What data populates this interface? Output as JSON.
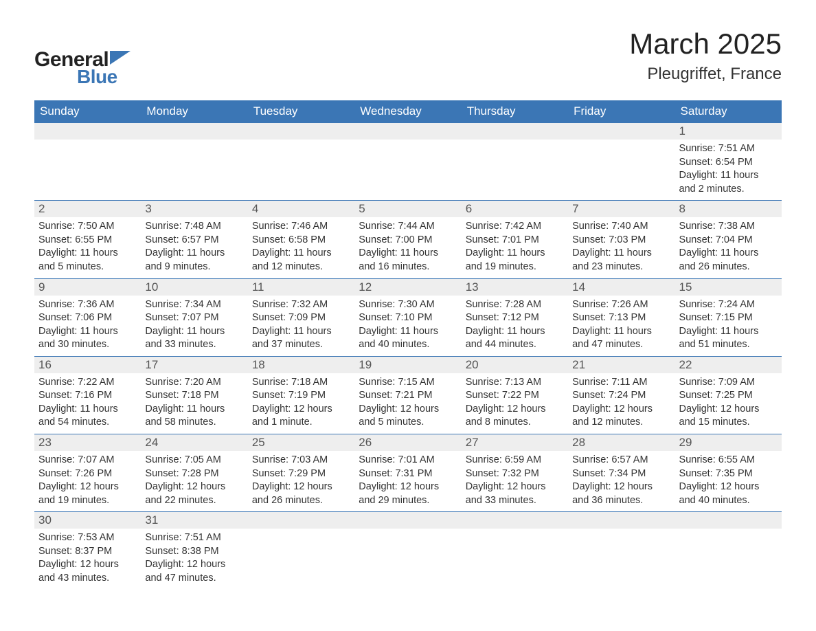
{
  "logo": {
    "text1": "General",
    "text2": "Blue",
    "icon_color": "#3b76b5"
  },
  "title": {
    "month": "March 2025",
    "location": "Pleugriffet, France"
  },
  "calendar": {
    "header_bg": "#3b76b5",
    "header_fg": "#ffffff",
    "daynum_bg": "#eeeeee",
    "border_color": "#3b76b5",
    "text_color": "#333333",
    "columns": [
      "Sunday",
      "Monday",
      "Tuesday",
      "Wednesday",
      "Thursday",
      "Friday",
      "Saturday"
    ],
    "weeks": [
      [
        {
          "day": "",
          "sunrise": "",
          "sunset": "",
          "daylight1": "",
          "daylight2": ""
        },
        {
          "day": "",
          "sunrise": "",
          "sunset": "",
          "daylight1": "",
          "daylight2": ""
        },
        {
          "day": "",
          "sunrise": "",
          "sunset": "",
          "daylight1": "",
          "daylight2": ""
        },
        {
          "day": "",
          "sunrise": "",
          "sunset": "",
          "daylight1": "",
          "daylight2": ""
        },
        {
          "day": "",
          "sunrise": "",
          "sunset": "",
          "daylight1": "",
          "daylight2": ""
        },
        {
          "day": "",
          "sunrise": "",
          "sunset": "",
          "daylight1": "",
          "daylight2": ""
        },
        {
          "day": "1",
          "sunrise": "Sunrise: 7:51 AM",
          "sunset": "Sunset: 6:54 PM",
          "daylight1": "Daylight: 11 hours",
          "daylight2": "and 2 minutes."
        }
      ],
      [
        {
          "day": "2",
          "sunrise": "Sunrise: 7:50 AM",
          "sunset": "Sunset: 6:55 PM",
          "daylight1": "Daylight: 11 hours",
          "daylight2": "and 5 minutes."
        },
        {
          "day": "3",
          "sunrise": "Sunrise: 7:48 AM",
          "sunset": "Sunset: 6:57 PM",
          "daylight1": "Daylight: 11 hours",
          "daylight2": "and 9 minutes."
        },
        {
          "day": "4",
          "sunrise": "Sunrise: 7:46 AM",
          "sunset": "Sunset: 6:58 PM",
          "daylight1": "Daylight: 11 hours",
          "daylight2": "and 12 minutes."
        },
        {
          "day": "5",
          "sunrise": "Sunrise: 7:44 AM",
          "sunset": "Sunset: 7:00 PM",
          "daylight1": "Daylight: 11 hours",
          "daylight2": "and 16 minutes."
        },
        {
          "day": "6",
          "sunrise": "Sunrise: 7:42 AM",
          "sunset": "Sunset: 7:01 PM",
          "daylight1": "Daylight: 11 hours",
          "daylight2": "and 19 minutes."
        },
        {
          "day": "7",
          "sunrise": "Sunrise: 7:40 AM",
          "sunset": "Sunset: 7:03 PM",
          "daylight1": "Daylight: 11 hours",
          "daylight2": "and 23 minutes."
        },
        {
          "day": "8",
          "sunrise": "Sunrise: 7:38 AM",
          "sunset": "Sunset: 7:04 PM",
          "daylight1": "Daylight: 11 hours",
          "daylight2": "and 26 minutes."
        }
      ],
      [
        {
          "day": "9",
          "sunrise": "Sunrise: 7:36 AM",
          "sunset": "Sunset: 7:06 PM",
          "daylight1": "Daylight: 11 hours",
          "daylight2": "and 30 minutes."
        },
        {
          "day": "10",
          "sunrise": "Sunrise: 7:34 AM",
          "sunset": "Sunset: 7:07 PM",
          "daylight1": "Daylight: 11 hours",
          "daylight2": "and 33 minutes."
        },
        {
          "day": "11",
          "sunrise": "Sunrise: 7:32 AM",
          "sunset": "Sunset: 7:09 PM",
          "daylight1": "Daylight: 11 hours",
          "daylight2": "and 37 minutes."
        },
        {
          "day": "12",
          "sunrise": "Sunrise: 7:30 AM",
          "sunset": "Sunset: 7:10 PM",
          "daylight1": "Daylight: 11 hours",
          "daylight2": "and 40 minutes."
        },
        {
          "day": "13",
          "sunrise": "Sunrise: 7:28 AM",
          "sunset": "Sunset: 7:12 PM",
          "daylight1": "Daylight: 11 hours",
          "daylight2": "and 44 minutes."
        },
        {
          "day": "14",
          "sunrise": "Sunrise: 7:26 AM",
          "sunset": "Sunset: 7:13 PM",
          "daylight1": "Daylight: 11 hours",
          "daylight2": "and 47 minutes."
        },
        {
          "day": "15",
          "sunrise": "Sunrise: 7:24 AM",
          "sunset": "Sunset: 7:15 PM",
          "daylight1": "Daylight: 11 hours",
          "daylight2": "and 51 minutes."
        }
      ],
      [
        {
          "day": "16",
          "sunrise": "Sunrise: 7:22 AM",
          "sunset": "Sunset: 7:16 PM",
          "daylight1": "Daylight: 11 hours",
          "daylight2": "and 54 minutes."
        },
        {
          "day": "17",
          "sunrise": "Sunrise: 7:20 AM",
          "sunset": "Sunset: 7:18 PM",
          "daylight1": "Daylight: 11 hours",
          "daylight2": "and 58 minutes."
        },
        {
          "day": "18",
          "sunrise": "Sunrise: 7:18 AM",
          "sunset": "Sunset: 7:19 PM",
          "daylight1": "Daylight: 12 hours",
          "daylight2": "and 1 minute."
        },
        {
          "day": "19",
          "sunrise": "Sunrise: 7:15 AM",
          "sunset": "Sunset: 7:21 PM",
          "daylight1": "Daylight: 12 hours",
          "daylight2": "and 5 minutes."
        },
        {
          "day": "20",
          "sunrise": "Sunrise: 7:13 AM",
          "sunset": "Sunset: 7:22 PM",
          "daylight1": "Daylight: 12 hours",
          "daylight2": "and 8 minutes."
        },
        {
          "day": "21",
          "sunrise": "Sunrise: 7:11 AM",
          "sunset": "Sunset: 7:24 PM",
          "daylight1": "Daylight: 12 hours",
          "daylight2": "and 12 minutes."
        },
        {
          "day": "22",
          "sunrise": "Sunrise: 7:09 AM",
          "sunset": "Sunset: 7:25 PM",
          "daylight1": "Daylight: 12 hours",
          "daylight2": "and 15 minutes."
        }
      ],
      [
        {
          "day": "23",
          "sunrise": "Sunrise: 7:07 AM",
          "sunset": "Sunset: 7:26 PM",
          "daylight1": "Daylight: 12 hours",
          "daylight2": "and 19 minutes."
        },
        {
          "day": "24",
          "sunrise": "Sunrise: 7:05 AM",
          "sunset": "Sunset: 7:28 PM",
          "daylight1": "Daylight: 12 hours",
          "daylight2": "and 22 minutes."
        },
        {
          "day": "25",
          "sunrise": "Sunrise: 7:03 AM",
          "sunset": "Sunset: 7:29 PM",
          "daylight1": "Daylight: 12 hours",
          "daylight2": "and 26 minutes."
        },
        {
          "day": "26",
          "sunrise": "Sunrise: 7:01 AM",
          "sunset": "Sunset: 7:31 PM",
          "daylight1": "Daylight: 12 hours",
          "daylight2": "and 29 minutes."
        },
        {
          "day": "27",
          "sunrise": "Sunrise: 6:59 AM",
          "sunset": "Sunset: 7:32 PM",
          "daylight1": "Daylight: 12 hours",
          "daylight2": "and 33 minutes."
        },
        {
          "day": "28",
          "sunrise": "Sunrise: 6:57 AM",
          "sunset": "Sunset: 7:34 PM",
          "daylight1": "Daylight: 12 hours",
          "daylight2": "and 36 minutes."
        },
        {
          "day": "29",
          "sunrise": "Sunrise: 6:55 AM",
          "sunset": "Sunset: 7:35 PM",
          "daylight1": "Daylight: 12 hours",
          "daylight2": "and 40 minutes."
        }
      ],
      [
        {
          "day": "30",
          "sunrise": "Sunrise: 7:53 AM",
          "sunset": "Sunset: 8:37 PM",
          "daylight1": "Daylight: 12 hours",
          "daylight2": "and 43 minutes."
        },
        {
          "day": "31",
          "sunrise": "Sunrise: 7:51 AM",
          "sunset": "Sunset: 8:38 PM",
          "daylight1": "Daylight: 12 hours",
          "daylight2": "and 47 minutes."
        },
        {
          "day": "",
          "sunrise": "",
          "sunset": "",
          "daylight1": "",
          "daylight2": ""
        },
        {
          "day": "",
          "sunrise": "",
          "sunset": "",
          "daylight1": "",
          "daylight2": ""
        },
        {
          "day": "",
          "sunrise": "",
          "sunset": "",
          "daylight1": "",
          "daylight2": ""
        },
        {
          "day": "",
          "sunrise": "",
          "sunset": "",
          "daylight1": "",
          "daylight2": ""
        },
        {
          "day": "",
          "sunrise": "",
          "sunset": "",
          "daylight1": "",
          "daylight2": ""
        }
      ]
    ]
  }
}
